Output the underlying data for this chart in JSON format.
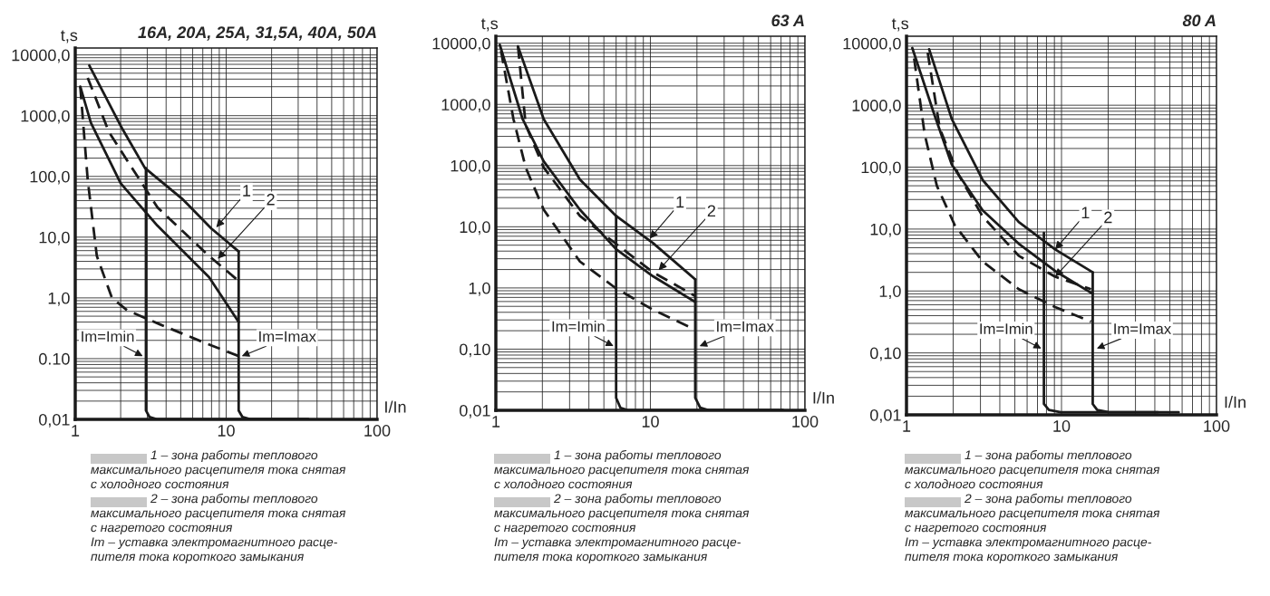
{
  "chart_data": [
    {
      "type": "line",
      "title": "16A, 20A, 25A, 31,5A, 40A, 50A",
      "xlabel": "I/In",
      "ylabel": "t,s",
      "log": "xy",
      "grid": true,
      "xlim": [
        1,
        100
      ],
      "ylim": [
        0.01,
        13000
      ],
      "xticks": [
        1,
        10,
        100
      ],
      "yticks": [
        {
          "value": 0.01,
          "label": "0,01"
        },
        {
          "value": 0.1,
          "label": "0.10"
        },
        {
          "value": 1,
          "label": "1,0"
        },
        {
          "value": 10,
          "label": "10,0"
        },
        {
          "value": 100,
          "label": "100,0"
        },
        {
          "value": 1000,
          "label": "1000,0"
        },
        {
          "value": 10000,
          "label": "10000,0"
        }
      ],
      "series": [
        {
          "color": "#1a1a1a",
          "line_style": "solid",
          "x": [
            1.24,
            2.0,
            2.9,
            5.1,
            8.0,
            12.1
          ],
          "values": [
            6700,
            680,
            137,
            43,
            13.8,
            5.8
          ]
        },
        {
          "color": "#1a1a1a",
          "line_style": "dashed",
          "x": [
            1.21,
            1.67,
            3.5,
            7.7,
            12.1
          ],
          "values": [
            4200,
            540,
            31,
            4.9,
            1.9
          ]
        },
        {
          "color": "#1a1a1a",
          "line_style": "solid",
          "x": [
            1.08,
            1.27,
            2.0,
            3.5,
            7.7,
            12.1
          ],
          "values": [
            3000,
            760,
            77,
            15.5,
            2.2,
            0.4
          ]
        },
        {
          "color": "#1a1a1a",
          "line_style": "dashed",
          "x": [
            1.08,
            1.21,
            1.39,
            1.75,
            2.2,
            3.7,
            7.3,
            12.1
          ],
          "values": [
            3000,
            87,
            4.9,
            1.0,
            0.63,
            0.36,
            0.18,
            0.11
          ]
        },
        {
          "color": "#1a1a1a",
          "line_style": "solid",
          "x": [
            2.94,
            2.94,
            3.1,
            3.5,
            35
          ],
          "values": [
            137,
            0.014,
            0.011,
            0.01,
            0.01
          ]
        },
        {
          "color": "#1a1a1a",
          "line_style": "solid",
          "x": [
            12.1,
            12.1,
            12.8,
            14.6,
            35
          ],
          "values": [
            5.8,
            0.014,
            0.011,
            0.01,
            0.01
          ]
        }
      ],
      "annotations": [
        {
          "text": "1",
          "x": 8.6,
          "y": 14.5
        },
        {
          "text": "2",
          "x": 8.8,
          "y": 4.4
        },
        {
          "text": "Im=Imin",
          "x": 2.8,
          "y": 0.11
        },
        {
          "text": "Im=Imax",
          "x": 12.7,
          "y": 0.11
        },
        "1 – зона работы теплового\nмаксимального расцепителя тока снятая\nс холодного состояния",
        "2 – зона работы теплового\nмаксимального расцепителя тока снятая\nс нагретого состояния",
        "Im – уставка электромагнитного расце-\nпителя тока короткого замыкания"
      ]
    },
    {
      "type": "line",
      "title": "63 A",
      "xlabel": "I/In",
      "ylabel": "t,s",
      "log": "xy",
      "grid": true,
      "xlim": [
        1,
        100
      ],
      "ylim": [
        0.01,
        13000
      ],
      "xticks": [
        1,
        10,
        100
      ],
      "yticks": [
        {
          "value": 0.01,
          "label": "0,01"
        },
        {
          "value": 0.1,
          "label": "0,10"
        },
        {
          "value": 1,
          "label": "1,0"
        },
        {
          "value": 10,
          "label": "10,0"
        },
        {
          "value": 100,
          "label": "100,0"
        },
        {
          "value": 1000,
          "label": "1000,0"
        },
        {
          "value": 10000,
          "label": "10000,0"
        }
      ],
      "series": [
        {
          "color": "#1a1a1a",
          "line_style": "solid",
          "x": [
            1.39,
            2.04,
            3.5,
            6.0,
            10.4,
            19.5
          ],
          "values": [
            8900,
            575,
            59,
            15,
            5.4,
            1.38
          ]
        },
        {
          "color": "#1a1a1a",
          "line_style": "solid",
          "x": [
            1.06,
            1.49,
            2.04,
            3.5,
            6.0,
            10.4,
            19.5
          ],
          "values": [
            9400,
            575,
            117,
            19,
            4.3,
            1.55,
            0.59
          ]
        },
        {
          "color": "#1a1a1a",
          "line_style": "dashed",
          "x": [
            1.39,
            1.56,
            2.04,
            3.5,
            10.4,
            19.5
          ],
          "values": [
            8900,
            460,
            93,
            15,
            1.8,
            0.74
          ]
        },
        {
          "color": "#1a1a1a",
          "line_style": "dashed",
          "x": [
            1.08,
            1.3,
            1.56,
            2.04,
            3.5,
            6.0,
            10.4,
            18.6
          ],
          "values": [
            7500,
            575,
            93,
            19,
            2.7,
            0.98,
            0.44,
            0.22
          ]
        },
        {
          "color": "#1a1a1a",
          "line_style": "solid",
          "x": [
            6.0,
            6.0,
            6.4,
            7.2,
            40,
            72
          ],
          "values": [
            15,
            0.016,
            0.011,
            0.01,
            0.01,
            0.01
          ]
        },
        {
          "color": "#1a1a1a",
          "line_style": "solid",
          "x": [
            19.5,
            19.5,
            21,
            24,
            72
          ],
          "values": [
            1.38,
            0.016,
            0.011,
            0.01,
            0.01
          ]
        }
      ],
      "annotations": [
        {
          "text": "1",
          "x": 9.9,
          "y": 6.4
        },
        {
          "text": "2",
          "x": 11.3,
          "y": 1.95
        },
        {
          "text": "Im=Imin",
          "x": 5.77,
          "y": 0.112
        },
        {
          "text": "Im=Imax",
          "x": 20.8,
          "y": 0.112
        },
        "1 – зона работы теплового\nмаксимального расцепителя тока снятая\nс холодного состояния",
        "2 – зона работы теплового\nмаксимального расцепителя тока снятая\nс нагретого состояния",
        "Im – уставка электромагнитного расце-\nпителя тока короткого замыкания"
      ]
    },
    {
      "type": "line",
      "title": "80 A",
      "xlabel": "I/In",
      "ylabel": "t,s",
      "log": "xy",
      "grid": true,
      "xlim": [
        1,
        100
      ],
      "ylim": [
        0.01,
        13000
      ],
      "xticks": [
        1,
        10,
        100
      ],
      "yticks": [
        {
          "value": 0.01,
          "label": "0,01"
        },
        {
          "value": 0.1,
          "label": "0,10"
        },
        {
          "value": 1,
          "label": "1,0"
        },
        {
          "value": 10,
          "label": "10,0"
        },
        {
          "value": 100,
          "label": "100,0"
        },
        {
          "value": 1000,
          "label": "1000,0"
        },
        {
          "value": 10000,
          "label": "10000,0"
        }
      ],
      "series": [
        {
          "color": "#1a1a1a",
          "line_style": "solid",
          "x": [
            1.4,
            1.96,
            3.1,
            5.3,
            9.1,
            15.9
          ],
          "values": [
            8000,
            600,
            62,
            13,
            4.7,
            2.0
          ]
        },
        {
          "color": "#1a1a1a",
          "line_style": "solid",
          "x": [
            1.09,
            1.5,
            1.96,
            3.1,
            5.3,
            9.1,
            15.9
          ],
          "values": [
            8400,
            750,
            110,
            20,
            5.8,
            2.1,
            0.9
          ]
        },
        {
          "color": "#1a1a1a",
          "line_style": "dashed",
          "x": [
            1.37,
            1.64,
            2.15,
            3.1,
            5.3,
            9.1,
            15.5
          ],
          "values": [
            7100,
            420,
            78,
            16,
            3.7,
            1.7,
            1.07
          ]
        },
        {
          "color": "#1a1a1a",
          "line_style": "dashed",
          "x": [
            1.12,
            1.31,
            1.57,
            2.05,
            3.1,
            5.3,
            9.1,
            15.5
          ],
          "values": [
            5700,
            340,
            50,
            11.5,
            3.0,
            1.07,
            0.55,
            0.32
          ]
        },
        {
          "color": "#1a1a1a",
          "line_style": "solid",
          "x": [
            7.7,
            7.7,
            8.3,
            9.9,
            57
          ],
          "values": [
            8.7,
            0.015,
            0.012,
            0.011,
            0.011
          ]
        },
        {
          "color": "#1a1a1a",
          "line_style": "solid",
          "x": [
            15.9,
            15.9,
            15.9,
            17,
            20.3,
            41.8
          ],
          "values": [
            2.0,
            0.9,
            0.015,
            0.012,
            0.011,
            0.011
          ]
        }
      ],
      "annotations": [
        {
          "text": "1",
          "x": 9.1,
          "y": 4.7
        },
        {
          "text": "2",
          "x": 9.1,
          "y": 1.7
        },
        {
          "text": "Im=Imin",
          "x": 7.4,
          "y": 0.118
        },
        {
          "text": "Im=Imax",
          "x": 16.9,
          "y": 0.118
        },
        "1 – зона работы теплового\nмаксимального расцепителя тока снятая\nс холодного состояния",
        "2 – зона работы теплового\nмаксимального расцепителя тока снятая\nс нагретого состояния",
        "Im – уставка электромагнитного расце-\nпителя тока короткого замыкания"
      ]
    }
  ]
}
